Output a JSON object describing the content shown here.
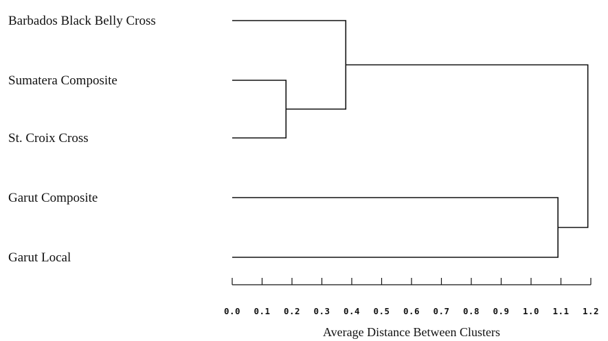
{
  "chart_data": {
    "type": "dendrogram",
    "leaves": [
      "Barbados Black Belly Cross",
      "Sumatera Composite",
      "St. Croix Cross",
      "Garut Composite",
      "Garut Local"
    ],
    "merges": [
      {
        "left": "Sumatera Composite",
        "right": "St. Croix Cross",
        "height": 0.18
      },
      {
        "left": "Barbados Black Belly Cross",
        "right": "cluster-1",
        "height": 0.38
      },
      {
        "left": "Garut Composite",
        "right": "Garut Local",
        "height": 1.09
      },
      {
        "left": "cluster-2",
        "right": "cluster-3",
        "height": 1.19
      }
    ],
    "xaxis": {
      "label": "Average Distance Between Clusters",
      "ticks": [
        "0.0",
        "0.1",
        "0.2",
        "0.3",
        "0.4",
        "0.5",
        "0.6",
        "0.7",
        "0.8",
        "0.9",
        "1.0",
        "1.1",
        "1.2"
      ],
      "range": [
        0,
        1.2
      ]
    },
    "grid": false
  }
}
